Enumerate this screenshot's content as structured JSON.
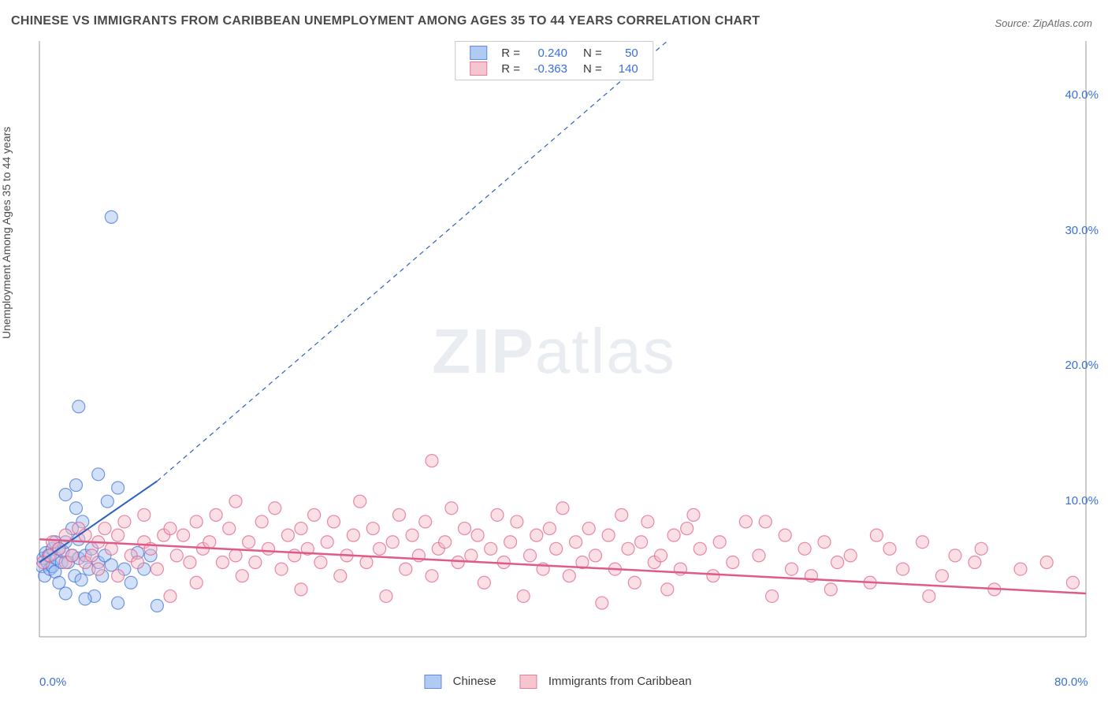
{
  "title": "CHINESE VS IMMIGRANTS FROM CARIBBEAN UNEMPLOYMENT AMONG AGES 35 TO 44 YEARS CORRELATION CHART",
  "source": "Source: ZipAtlas.com",
  "ylabel": "Unemployment Among Ages 35 to 44 years",
  "watermark": {
    "bold": "ZIP",
    "light": "atlas"
  },
  "chart": {
    "type": "scatter",
    "xlim": [
      0,
      80
    ],
    "ylim": [
      0,
      44
    ],
    "xtick_labels": [
      {
        "v": 0,
        "label": "0.0%"
      },
      {
        "v": 80,
        "label": "80.0%"
      }
    ],
    "ytick_labels": [
      {
        "v": 10,
        "label": "10.0%"
      },
      {
        "v": 20,
        "label": "20.0%"
      },
      {
        "v": 30,
        "label": "30.0%"
      },
      {
        "v": 40,
        "label": "40.0%"
      }
    ],
    "axis_color": "#9a9a9a",
    "tick_text_color": "#3b6fd6",
    "background": "#ffffff",
    "marker_radius": 8,
    "marker_opacity": 0.45,
    "marker_stroke_width": 1.2,
    "series": [
      {
        "id": "chinese",
        "label": "Chinese",
        "fill": "#9ebdf0",
        "stroke": "#3b6fd6",
        "R": "0.240",
        "N": "50",
        "trend": {
          "solid": {
            "x1": 0,
            "y1": 5.5,
            "x2": 9,
            "y2": 11.5
          },
          "dashed": {
            "x1": 9,
            "y1": 11.5,
            "x2": 48,
            "y2": 44
          },
          "color": "#2e5fbf",
          "line_width": 2
        },
        "points": [
          [
            0.2,
            5.2
          ],
          [
            0.3,
            5.8
          ],
          [
            0.5,
            6.2
          ],
          [
            0.4,
            4.5
          ],
          [
            0.6,
            5.5
          ],
          [
            0.7,
            6.0
          ],
          [
            0.8,
            5.0
          ],
          [
            1.0,
            6.5
          ],
          [
            1.0,
            5.2
          ],
          [
            1.2,
            7.0
          ],
          [
            1.2,
            4.8
          ],
          [
            1.3,
            5.8
          ],
          [
            1.5,
            6.5
          ],
          [
            1.5,
            4.0
          ],
          [
            1.7,
            5.5
          ],
          [
            1.8,
            6.3
          ],
          [
            2.0,
            7.0
          ],
          [
            2.0,
            3.2
          ],
          [
            2.2,
            5.5
          ],
          [
            2.5,
            6.0
          ],
          [
            2.5,
            8.0
          ],
          [
            2.7,
            4.5
          ],
          [
            2.8,
            9.5
          ],
          [
            3.0,
            5.8
          ],
          [
            3.0,
            7.2
          ],
          [
            3.2,
            4.2
          ],
          [
            3.3,
            8.5
          ],
          [
            3.5,
            6.0
          ],
          [
            3.8,
            5.0
          ],
          [
            4.0,
            6.5
          ],
          [
            4.2,
            3.0
          ],
          [
            4.5,
            5.5
          ],
          [
            4.5,
            12.0
          ],
          [
            4.8,
            4.5
          ],
          [
            5.0,
            6.0
          ],
          [
            5.2,
            10.0
          ],
          [
            5.5,
            5.3
          ],
          [
            6.0,
            2.5
          ],
          [
            6.0,
            11.0
          ],
          [
            6.5,
            5.0
          ],
          [
            7.0,
            4.0
          ],
          [
            7.5,
            6.2
          ],
          [
            8.0,
            5.0
          ],
          [
            8.5,
            6.0
          ],
          [
            9.0,
            2.3
          ],
          [
            2.0,
            10.5
          ],
          [
            2.8,
            11.2
          ],
          [
            3.0,
            17.0
          ],
          [
            5.5,
            31.0
          ],
          [
            3.5,
            2.8
          ]
        ]
      },
      {
        "id": "caribbean",
        "label": "Immigrants from Caribbean",
        "fill": "#f3b7c5",
        "stroke": "#e05a88",
        "R": "-0.363",
        "N": "140",
        "trend": {
          "solid": {
            "x1": 0,
            "y1": 7.2,
            "x2": 80,
            "y2": 3.2
          },
          "color": "#e05a88",
          "line_width": 2.5
        },
        "points": [
          [
            0.3,
            5.5
          ],
          [
            0.8,
            6.0
          ],
          [
            1.0,
            7.0
          ],
          [
            1.5,
            6.5
          ],
          [
            2.0,
            5.5
          ],
          [
            2.0,
            7.5
          ],
          [
            2.5,
            6.0
          ],
          [
            3.0,
            8.0
          ],
          [
            3.5,
            5.5
          ],
          [
            3.5,
            7.5
          ],
          [
            4.0,
            6.0
          ],
          [
            4.5,
            7.0
          ],
          [
            4.5,
            5.0
          ],
          [
            5.0,
            8.0
          ],
          [
            5.5,
            6.5
          ],
          [
            6.0,
            7.5
          ],
          [
            6.0,
            4.5
          ],
          [
            6.5,
            8.5
          ],
          [
            7.0,
            6.0
          ],
          [
            7.5,
            5.5
          ],
          [
            8.0,
            7.0
          ],
          [
            8.0,
            9.0
          ],
          [
            8.5,
            6.5
          ],
          [
            9.0,
            5.0
          ],
          [
            9.5,
            7.5
          ],
          [
            10.0,
            8.0
          ],
          [
            10.0,
            3.0
          ],
          [
            10.5,
            6.0
          ],
          [
            11.0,
            7.5
          ],
          [
            11.5,
            5.5
          ],
          [
            12.0,
            8.5
          ],
          [
            12.0,
            4.0
          ],
          [
            12.5,
            6.5
          ],
          [
            13.0,
            7.0
          ],
          [
            13.5,
            9.0
          ],
          [
            14.0,
            5.5
          ],
          [
            14.5,
            8.0
          ],
          [
            15.0,
            6.0
          ],
          [
            15.0,
            10.0
          ],
          [
            15.5,
            4.5
          ],
          [
            16.0,
            7.0
          ],
          [
            16.5,
            5.5
          ],
          [
            17.0,
            8.5
          ],
          [
            17.5,
            6.5
          ],
          [
            18.0,
            9.5
          ],
          [
            18.5,
            5.0
          ],
          [
            19.0,
            7.5
          ],
          [
            19.5,
            6.0
          ],
          [
            20.0,
            8.0
          ],
          [
            20.0,
            3.5
          ],
          [
            20.5,
            6.5
          ],
          [
            21.0,
            9.0
          ],
          [
            21.5,
            5.5
          ],
          [
            22.0,
            7.0
          ],
          [
            22.5,
            8.5
          ],
          [
            23.0,
            4.5
          ],
          [
            23.5,
            6.0
          ],
          [
            24.0,
            7.5
          ],
          [
            24.5,
            10.0
          ],
          [
            25.0,
            5.5
          ],
          [
            25.5,
            8.0
          ],
          [
            26.0,
            6.5
          ],
          [
            26.5,
            3.0
          ],
          [
            27.0,
            7.0
          ],
          [
            27.5,
            9.0
          ],
          [
            28.0,
            5.0
          ],
          [
            28.5,
            7.5
          ],
          [
            29.0,
            6.0
          ],
          [
            29.5,
            8.5
          ],
          [
            30.0,
            4.5
          ],
          [
            30.0,
            13.0
          ],
          [
            30.5,
            6.5
          ],
          [
            31.0,
            7.0
          ],
          [
            31.5,
            9.5
          ],
          [
            32.0,
            5.5
          ],
          [
            32.5,
            8.0
          ],
          [
            33.0,
            6.0
          ],
          [
            33.5,
            7.5
          ],
          [
            34.0,
            4.0
          ],
          [
            34.5,
            6.5
          ],
          [
            35.0,
            9.0
          ],
          [
            35.5,
            5.5
          ],
          [
            36.0,
            7.0
          ],
          [
            36.5,
            8.5
          ],
          [
            37.0,
            3.0
          ],
          [
            37.5,
            6.0
          ],
          [
            38.0,
            7.5
          ],
          [
            38.5,
            5.0
          ],
          [
            39.0,
            8.0
          ],
          [
            39.5,
            6.5
          ],
          [
            40.0,
            9.5
          ],
          [
            40.5,
            4.5
          ],
          [
            41.0,
            7.0
          ],
          [
            41.5,
            5.5
          ],
          [
            42.0,
            8.0
          ],
          [
            42.5,
            6.0
          ],
          [
            43.0,
            2.5
          ],
          [
            43.5,
            7.5
          ],
          [
            44.0,
            5.0
          ],
          [
            44.5,
            9.0
          ],
          [
            45.0,
            6.5
          ],
          [
            45.5,
            4.0
          ],
          [
            46.0,
            7.0
          ],
          [
            46.5,
            8.5
          ],
          [
            47.0,
            5.5
          ],
          [
            47.5,
            6.0
          ],
          [
            48.0,
            3.5
          ],
          [
            48.5,
            7.5
          ],
          [
            49.0,
            5.0
          ],
          [
            49.5,
            8.0
          ],
          [
            50.5,
            6.5
          ],
          [
            51.5,
            4.5
          ],
          [
            52.0,
            7.0
          ],
          [
            53.0,
            5.5
          ],
          [
            54.0,
            8.5
          ],
          [
            55.0,
            6.0
          ],
          [
            56.0,
            3.0
          ],
          [
            57.0,
            7.5
          ],
          [
            57.5,
            5.0
          ],
          [
            58.5,
            6.5
          ],
          [
            59.0,
            4.5
          ],
          [
            60.0,
            7.0
          ],
          [
            61.0,
            5.5
          ],
          [
            62.0,
            6.0
          ],
          [
            63.5,
            4.0
          ],
          [
            65.0,
            6.5
          ],
          [
            66.0,
            5.0
          ],
          [
            67.5,
            7.0
          ],
          [
            69.0,
            4.5
          ],
          [
            70.0,
            6.0
          ],
          [
            71.5,
            5.5
          ],
          [
            73.0,
            3.5
          ],
          [
            75.0,
            5.0
          ],
          [
            50.0,
            9.0
          ],
          [
            55.5,
            8.5
          ],
          [
            60.5,
            3.5
          ],
          [
            64.0,
            7.5
          ],
          [
            68.0,
            3.0
          ],
          [
            72.0,
            6.5
          ],
          [
            77.0,
            5.5
          ],
          [
            79.0,
            4.0
          ]
        ]
      }
    ]
  },
  "legend_top_labels": {
    "R": "R =",
    "N": "N ="
  },
  "legend_value_color": "#3b6fd6",
  "legend_label_color": "#3a3a3a"
}
